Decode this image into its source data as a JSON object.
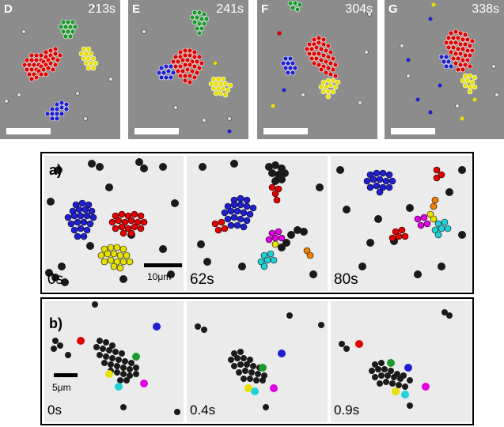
{
  "top_row": [
    {
      "letter": "D",
      "time": "213s"
    },
    {
      "letter": "E",
      "time": "241s"
    },
    {
      "letter": "F",
      "time": "304s"
    },
    {
      "letter": "G",
      "time": "338s"
    }
  ],
  "panel_a": {
    "label": "a)",
    "times": [
      "0s",
      "62s",
      "80s"
    ],
    "scale_label": "10μm"
  },
  "panel_b": {
    "label": "b)",
    "times": [
      "0s",
      "0.4s",
      "0.9s"
    ],
    "scale_label": "5μm"
  },
  "colors": {
    "red": "#e00000",
    "green": "#1a9a2a",
    "yellow": "#e8e000",
    "blue": "#1f1fd0",
    "magenta": "#e000e0",
    "cyan": "#22d0d8",
    "orange": "#f08000",
    "dark": "#1a1a1a"
  }
}
